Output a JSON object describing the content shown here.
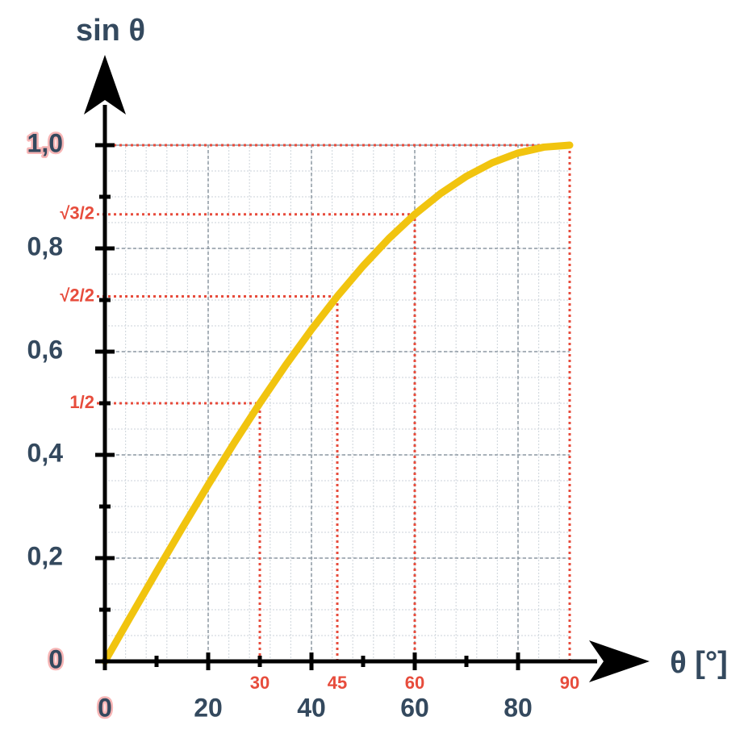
{
  "chart_data": {
    "type": "line",
    "y_label": "sin θ",
    "x_label": "θ [°]",
    "x": [
      0,
      5,
      10,
      15,
      20,
      25,
      30,
      35,
      40,
      45,
      50,
      55,
      60,
      65,
      70,
      75,
      80,
      85,
      90
    ],
    "series": [
      {
        "name": "sin θ",
        "color": "#f1c40f",
        "values": [
          0,
          0.0872,
          0.1736,
          0.2588,
          0.342,
          0.4226,
          0.5,
          0.5736,
          0.6428,
          0.7071,
          0.766,
          0.8192,
          0.866,
          0.9063,
          0.9397,
          0.9659,
          0.9848,
          0.9962,
          1
        ]
      }
    ],
    "xlim": [
      0,
      105
    ],
    "ylim": [
      0,
      1.15
    ],
    "xticks": [
      0,
      20,
      40,
      60,
      80
    ],
    "yticks": [
      0,
      {
        "value": 0.2,
        "label": "0,2"
      },
      {
        "value": 0.4,
        "label": "0,4"
      },
      {
        "value": 0.6,
        "label": "0,6"
      },
      {
        "value": 0.8,
        "label": "0,8"
      },
      {
        "value": 1,
        "label": "1,0"
      }
    ],
    "xticks_minor": [
      10,
      30,
      50,
      70
    ],
    "yticks_minor": [
      0.1,
      0.3,
      0.5,
      0.7,
      0.9
    ],
    "minor_grid": {
      "x_step": 4,
      "y_step": 0.05
    },
    "grid": true,
    "special_points": [
      {
        "x": 30,
        "y": {
          "value": 0.5,
          "label": "1/2"
        }
      },
      {
        "x": 45,
        "y": {
          "value": 0.7071,
          "label": "√2/2"
        }
      },
      {
        "x": 60,
        "y": {
          "value": 0.866,
          "label": "√3/2"
        }
      },
      {
        "x": 90,
        "y": 1
      }
    ],
    "special_color": "#e74c3c"
  }
}
